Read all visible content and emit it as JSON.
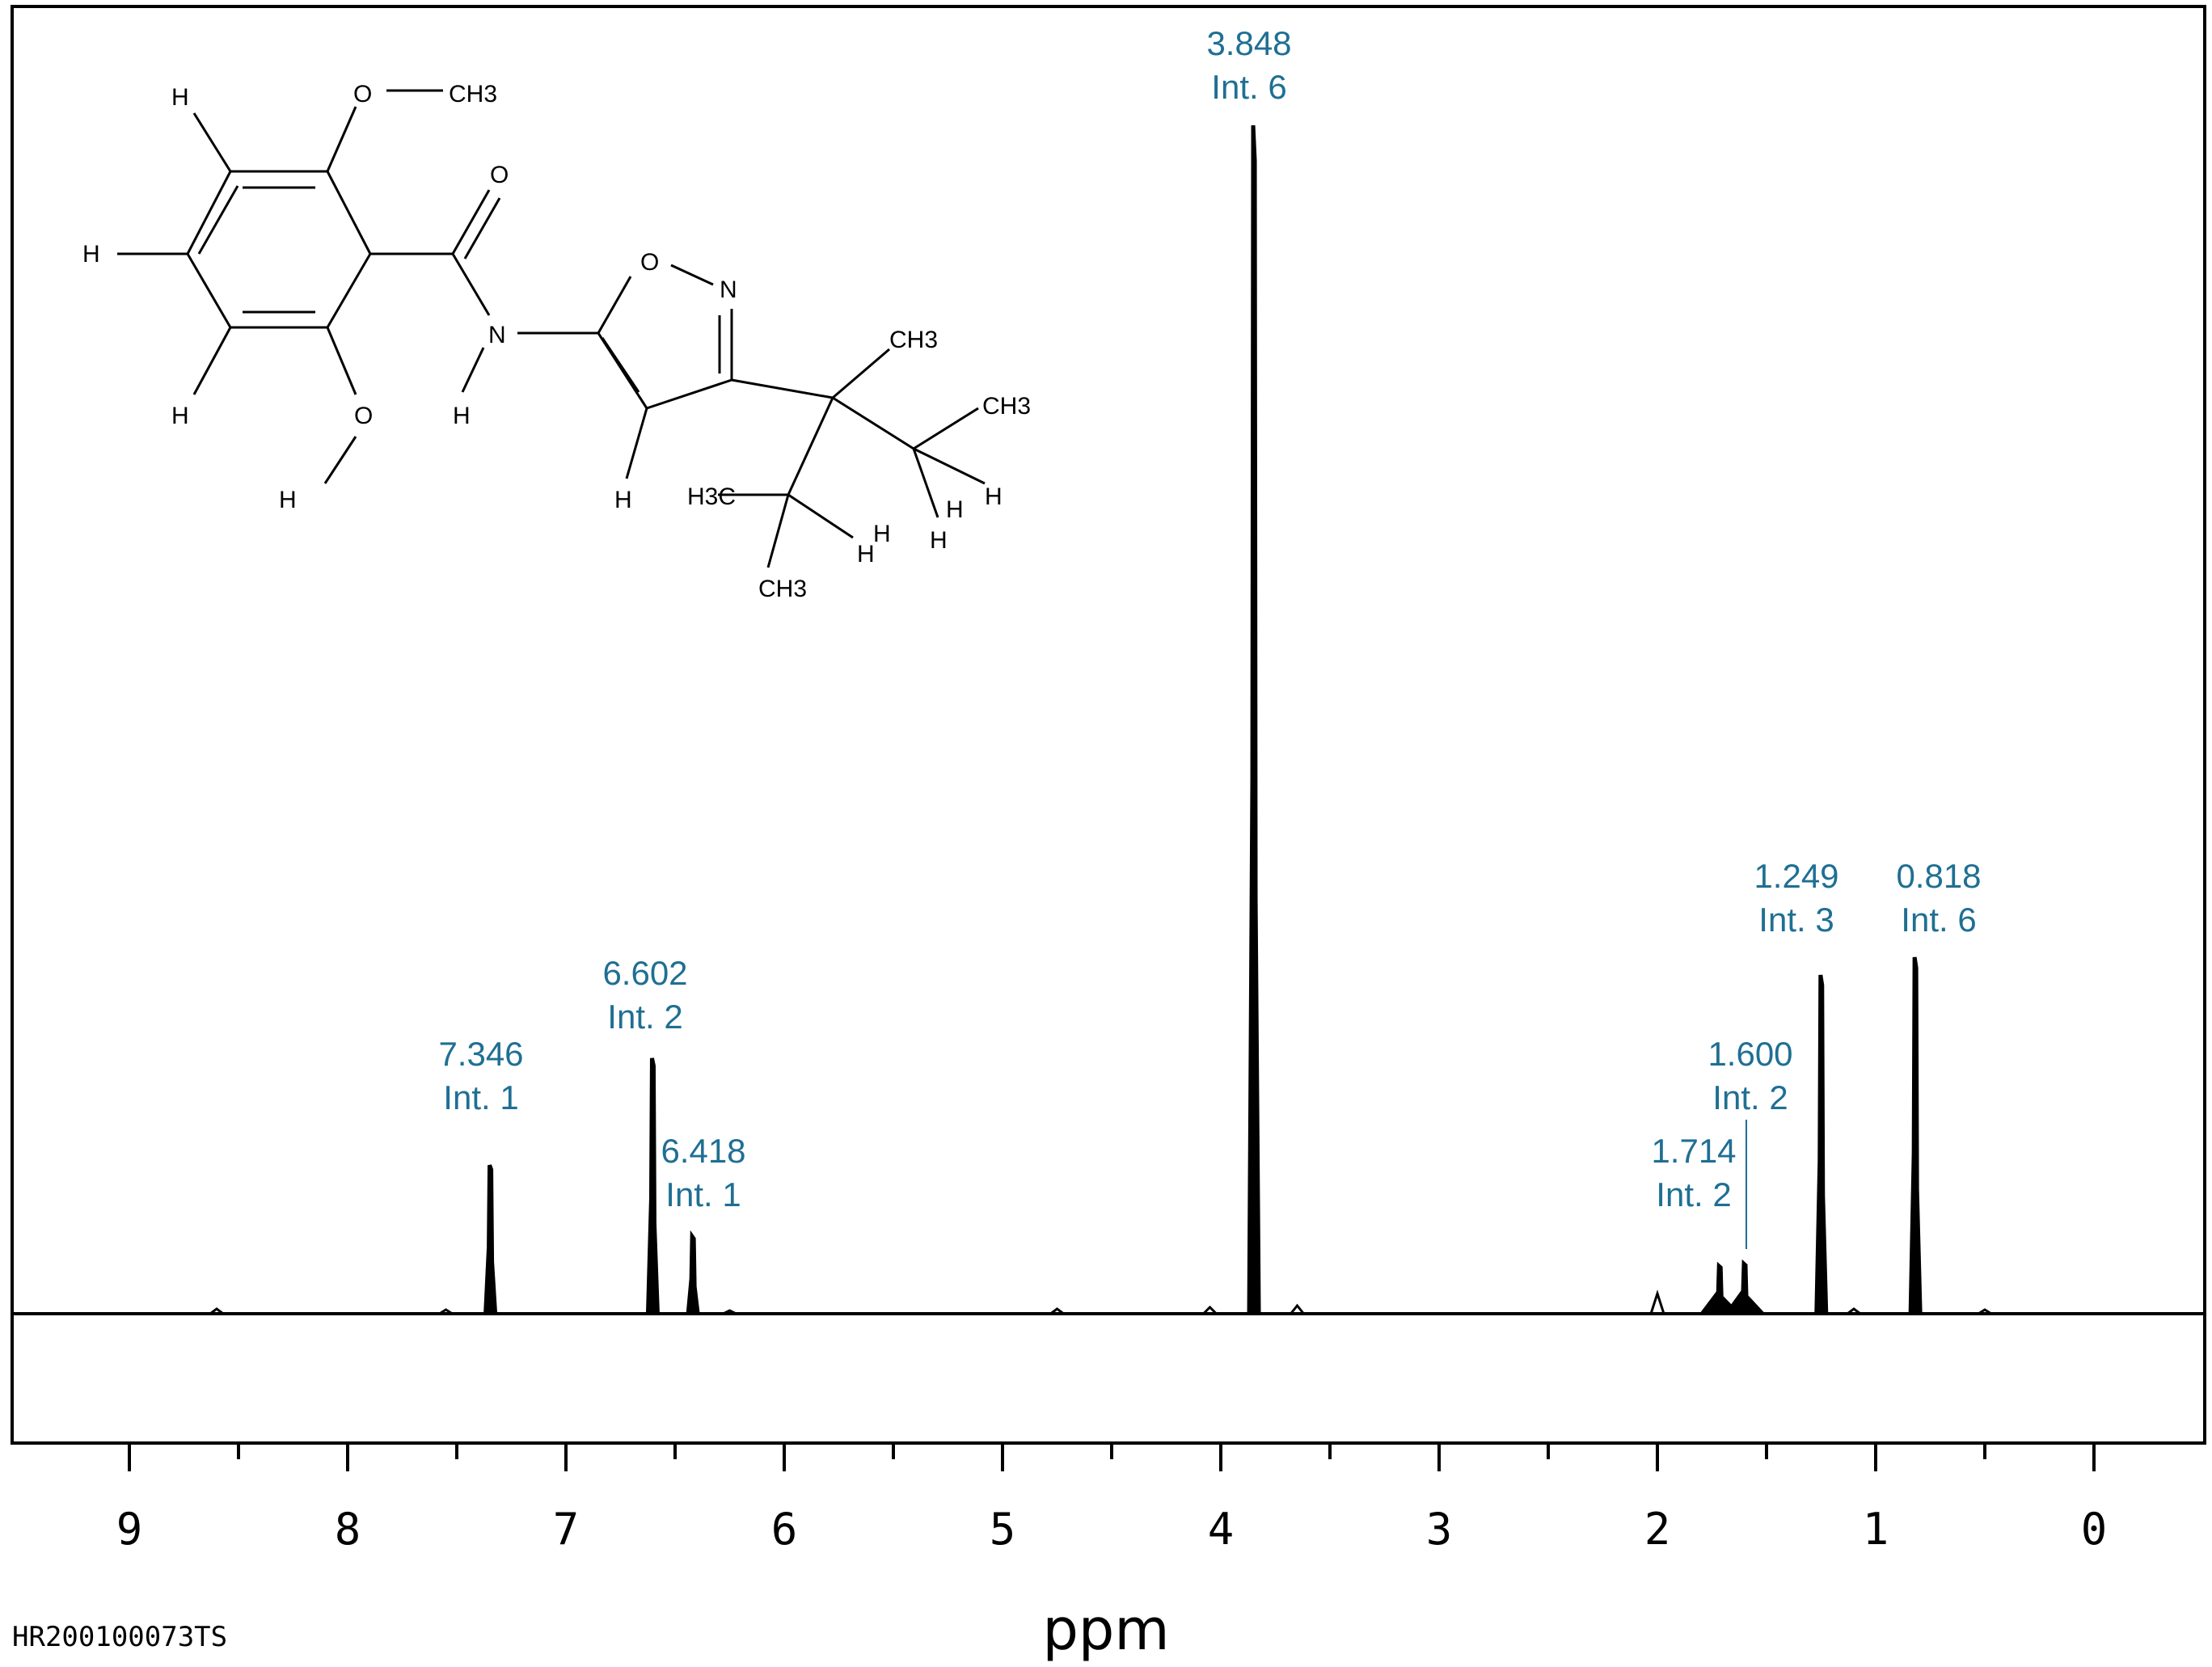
{
  "chart_data": {
    "type": "line",
    "xlabel": "ppm",
    "xlim": [
      9.5,
      -0.6
    ],
    "x_reversed": true,
    "x_ticks": [
      "9",
      "8",
      "7",
      "6",
      "5",
      "4",
      "3",
      "2",
      "1",
      "0"
    ],
    "grid": false,
    "legend": "none",
    "sample_code": "HR200100073TS",
    "peaks": [
      {
        "shift": "7.346",
        "integral": "Int. 1",
        "ppm": 7.346,
        "height": 0.125
      },
      {
        "shift": "6.602",
        "integral": "Int. 2",
        "ppm": 6.602,
        "height": 0.215
      },
      {
        "shift": "6.418",
        "integral": "Int. 1",
        "ppm": 6.418,
        "height": 0.065
      },
      {
        "shift": "3.848",
        "integral": "Int. 6",
        "ppm": 3.848,
        "height": 1.0
      },
      {
        "shift": "1.714",
        "integral": "Int. 2",
        "ppm": 1.714,
        "height": 0.04
      },
      {
        "shift": "1.600",
        "integral": "Int. 2",
        "ppm": 1.6,
        "height": 0.042
      },
      {
        "shift": "1.249",
        "integral": "Int. 3",
        "ppm": 1.249,
        "height": 0.285
      },
      {
        "shift": "0.818",
        "integral": "Int. 6",
        "ppm": 0.818,
        "height": 0.3
      }
    ]
  },
  "structure": {
    "atoms": [
      "H",
      "O",
      "CH3",
      "O",
      "H",
      "N",
      "O",
      "N",
      "CH3",
      "H",
      "CH3",
      "H",
      "O",
      "H",
      "H3C",
      "H",
      "H",
      "H",
      "H",
      "CH3",
      "H",
      "H"
    ]
  },
  "colors": {
    "label": "#1f6f93",
    "trace": "#000000"
  }
}
